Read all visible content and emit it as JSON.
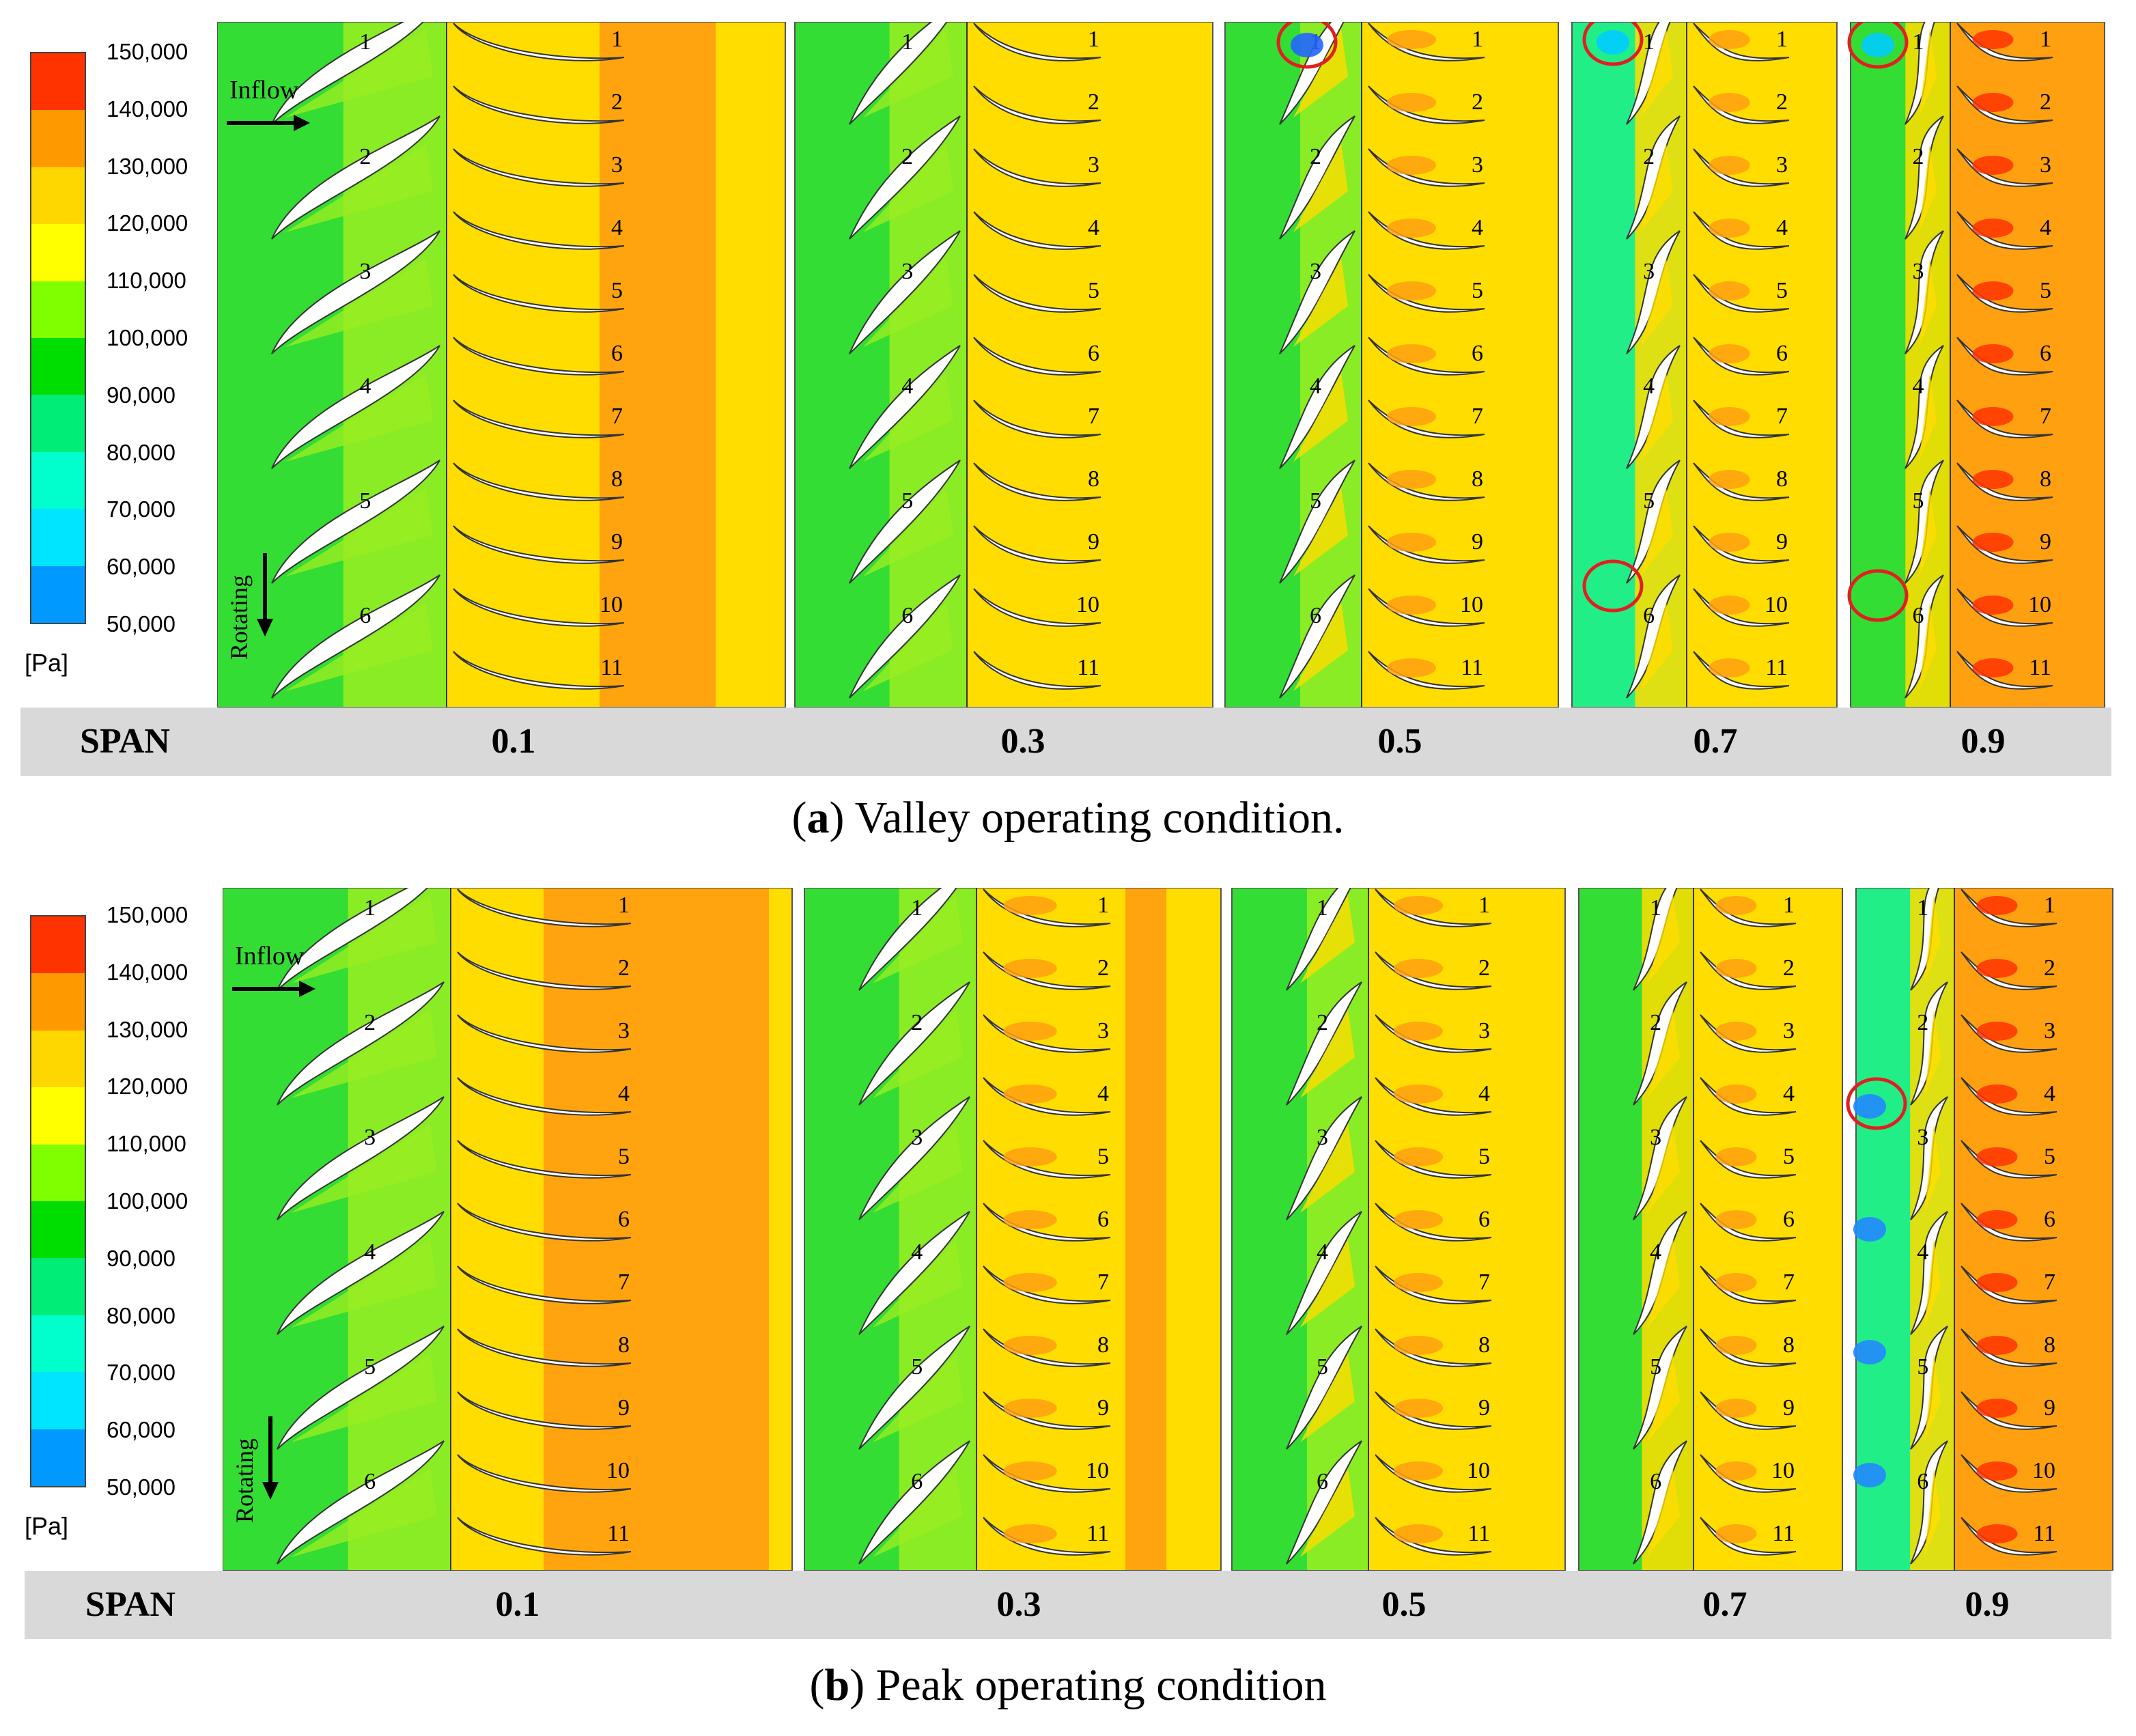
{
  "colormap": {
    "unit": "[Pa]",
    "ticks": [
      "150,000",
      "140,000",
      "130,000",
      "120,000",
      "110,000",
      "100,000",
      "90,000",
      "80,000",
      "70,000",
      "60,000",
      "50,000"
    ],
    "band_colors": [
      "#ff3300",
      "#ff9900",
      "#ffd700",
      "#ffff00",
      "#7fff00",
      "#00dd00",
      "#00ee77",
      "#00ffcc",
      "#00e5ff",
      "#0099ff",
      "#0022ff"
    ]
  },
  "annotations": {
    "inflow": "Inflow",
    "rotating": "Rotating"
  },
  "span_header": "SPAN",
  "panels": [
    {
      "id": "a",
      "caption_letter": "a",
      "caption_text": ") Valley operating condition.",
      "spans": [
        "0.1",
        "0.3",
        "0.5",
        "0.7",
        "0.9"
      ],
      "guide_vane_numbers": [
        "1",
        "2",
        "3",
        "4",
        "5",
        "6"
      ],
      "runner_blade_numbers": [
        "1",
        "2",
        "3",
        "4",
        "5",
        "6",
        "7",
        "8",
        "9",
        "10",
        "11"
      ],
      "highlighted_regions": "red circles at 0.5, 0.7 and 0.9 spans"
    },
    {
      "id": "b",
      "caption_letter": "b",
      "caption_text": ") Peak operating condition",
      "spans": [
        "0.1",
        "0.3",
        "0.5",
        "0.7",
        "0.9"
      ],
      "guide_vane_numbers": [
        "1",
        "2",
        "3",
        "4",
        "5",
        "6"
      ],
      "runner_blade_numbers": [
        "1",
        "2",
        "3",
        "4",
        "5",
        "6",
        "7",
        "8",
        "9",
        "10",
        "11"
      ],
      "highlighted_regions": "red circle at 0.9 span"
    }
  ]
}
